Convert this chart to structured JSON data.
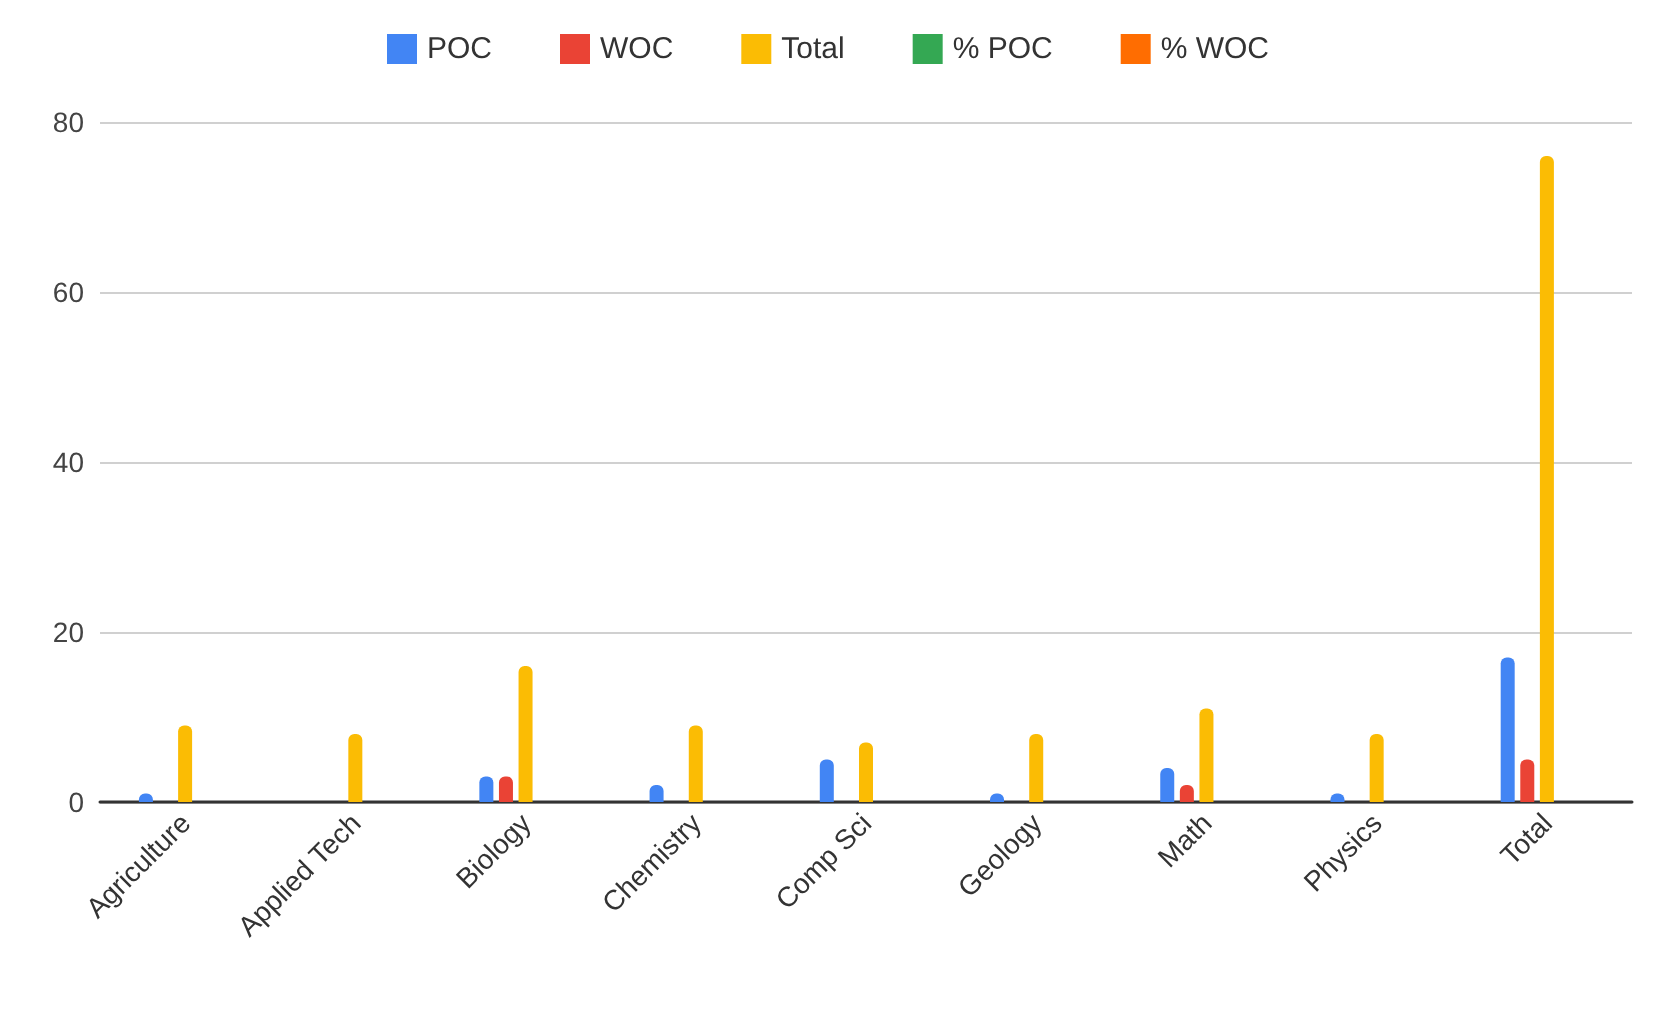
{
  "chart_data": {
    "type": "bar",
    "categories": [
      "Agriculture",
      "Applied Tech",
      "Biology",
      "Chemistry",
      "Comp Sci",
      "Geology",
      "Math",
      "Physics",
      "Total"
    ],
    "series": [
      {
        "name": "POC",
        "color": "#4285f4",
        "values": [
          1,
          0,
          3,
          2,
          5,
          1,
          4,
          1,
          17
        ]
      },
      {
        "name": "WOC",
        "color": "#ea4335",
        "values": [
          0,
          0,
          3,
          0,
          0,
          0,
          2,
          0,
          5
        ]
      },
      {
        "name": "Total",
        "color": "#fbbc04",
        "values": [
          9,
          8,
          16,
          9,
          7,
          8,
          11,
          8,
          76
        ]
      },
      {
        "name": "% POC",
        "color": "#34a853",
        "values": [
          null,
          null,
          null,
          null,
          null,
          null,
          null,
          null,
          null
        ]
      },
      {
        "name": "% WOC",
        "color": "#ff6d01",
        "values": [
          null,
          null,
          null,
          null,
          null,
          null,
          null,
          null,
          null
        ]
      }
    ],
    "ylim": [
      0,
      80
    ],
    "yticks": [
      0,
      20,
      40,
      60,
      80
    ],
    "grid": "y",
    "legend": "top"
  }
}
